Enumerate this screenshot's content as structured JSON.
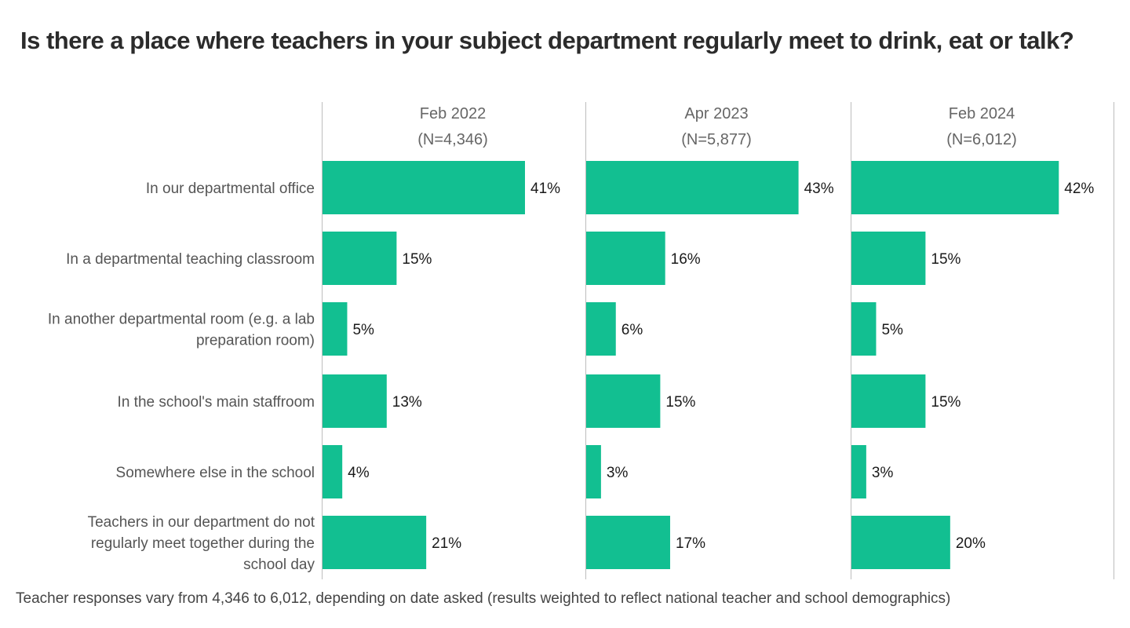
{
  "title": "Is there a place where teachers in your subject department regularly meet to drink, eat or talk?",
  "footnote": "Teacher responses vary from 4,346 to 6,012, depending on date asked (results weighted to reflect national teacher and school demographics)",
  "colors": {
    "bar": "#12BF91",
    "divider": "#bdbdbd",
    "category_text": "#555555",
    "header_text": "#666666",
    "value_text": "#1a1a1a"
  },
  "chart_data": {
    "type": "bar",
    "orientation": "horizontal",
    "title": "Is there a place where teachers in your subject department regularly meet to drink, eat or talk?",
    "categories": [
      "In our departmental office",
      "In a departmental teaching classroom",
      "In another departmental room (e.g. a lab preparation room)",
      "In the school's main staffroom",
      "Somewhere else in the school",
      "Teachers in our department do not regularly meet together during the school day"
    ],
    "category_lines": [
      [
        "In our departmental office"
      ],
      [
        "In a departmental teaching classroom"
      ],
      [
        "In another departmental room (e.g. a lab",
        "preparation room)"
      ],
      [
        "In the school's main staffroom"
      ],
      [
        "Somewhere else in the school"
      ],
      [
        "Teachers in our department do not",
        "regularly meet together during the",
        "school day"
      ]
    ],
    "series": [
      {
        "name": "Feb 2022",
        "n_label": "(N=4,346)",
        "values": [
          41,
          15,
          5,
          13,
          4,
          21
        ],
        "labels": [
          "41%",
          "15%",
          "5%",
          "13%",
          "4%",
          "21%"
        ]
      },
      {
        "name": "Apr 2023",
        "n_label": "(N=5,877)",
        "values": [
          43,
          16,
          6,
          15,
          3,
          17
        ],
        "labels": [
          "43%",
          "16%",
          "6%",
          "15%",
          "3%",
          "17%"
        ]
      },
      {
        "name": "Feb 2024",
        "n_label": "(N=6,012)",
        "values": [
          42,
          15,
          5,
          15,
          3,
          20
        ],
        "labels": [
          "42%",
          "15%",
          "5%",
          "15%",
          "3%",
          "20%"
        ]
      }
    ],
    "xlim": [
      0,
      53
    ],
    "unit": "%",
    "grid": false,
    "legend": "none"
  }
}
